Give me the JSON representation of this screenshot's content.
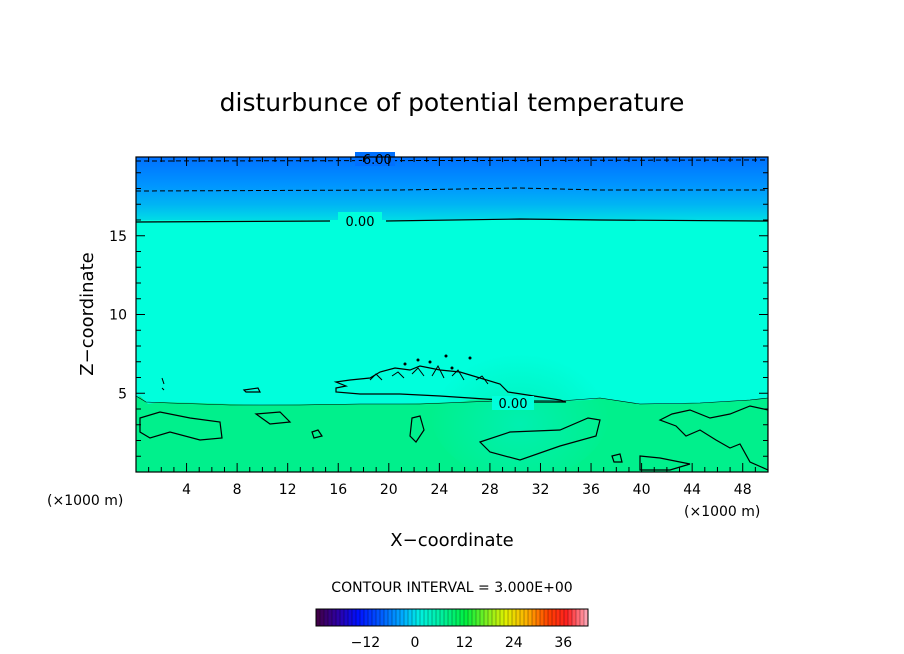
{
  "chart_data": {
    "type": "heatmap",
    "title": "disturbunce of potential temperature",
    "xlabel": "X−coordinate",
    "ylabel": "Z−coordinate",
    "x_unit": "(×1000 m)",
    "y_unit": "(×1000 m)",
    "xlim": [
      0,
      50
    ],
    "ylim": [
      0,
      20
    ],
    "x_ticks": [
      4,
      8,
      12,
      16,
      20,
      24,
      28,
      32,
      36,
      40,
      44,
      48
    ],
    "y_ticks": [
      5,
      10,
      15
    ],
    "contour_labels": [
      {
        "text": "-6.00",
        "x": 19,
        "z": 19.8
      },
      {
        "text": "0.00",
        "x": 17.5,
        "z": 15.8
      },
      {
        "text": "0.00",
        "x": 30.5,
        "z": 4.5
      }
    ],
    "contour_interval_text": "CONTOUR INTERVAL = 3.000E+00",
    "colorbar": {
      "ticks": [
        "−12",
        "0",
        "12",
        "24",
        "36"
      ],
      "tick_values": [
        -12,
        0,
        12,
        24,
        36
      ],
      "range": [
        -24,
        42
      ]
    },
    "colors": {
      "upper_layer": "#00ffdd",
      "lower_layer": "#00f08c",
      "top_band": "#0080ff"
    }
  }
}
